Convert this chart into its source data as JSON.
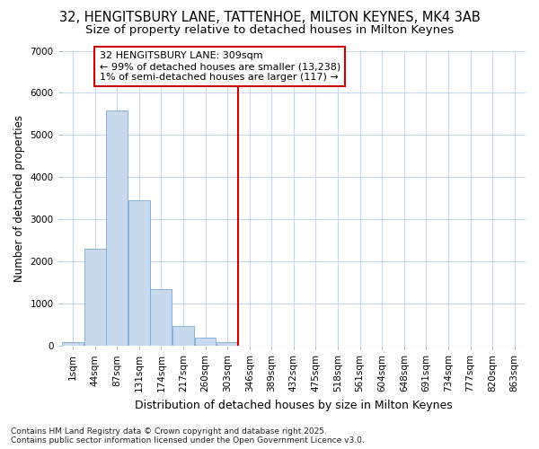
{
  "title": "32, HENGITSBURY LANE, TATTENHOE, MILTON KEYNES, MK4 3AB",
  "subtitle": "Size of property relative to detached houses in Milton Keynes",
  "xlabel": "Distribution of detached houses by size in Milton Keynes",
  "ylabel": "Number of detached properties",
  "bin_labels": [
    "1sqm",
    "44sqm",
    "87sqm",
    "131sqm",
    "174sqm",
    "217sqm",
    "260sqm",
    "303sqm",
    "346sqm",
    "389sqm",
    "432sqm",
    "475sqm",
    "518sqm",
    "561sqm",
    "604sqm",
    "648sqm",
    "691sqm",
    "734sqm",
    "777sqm",
    "820sqm",
    "863sqm"
  ],
  "bar_values": [
    80,
    2300,
    5580,
    3450,
    1340,
    470,
    200,
    90,
    0,
    0,
    0,
    0,
    0,
    0,
    0,
    0,
    0,
    0,
    0,
    0,
    0
  ],
  "bar_color": "#c8d8ed",
  "bar_edge_color": "#7aa8d4",
  "vline_x": 7.5,
  "vline_color": "#cc0000",
  "annotation_text": "32 HENGITSBURY LANE: 309sqm\n← 99% of detached houses are smaller (13,238)\n1% of semi-detached houses are larger (117) →",
  "annotation_box_color": "#cc0000",
  "ylim": [
    0,
    7000
  ],
  "yticks": [
    0,
    1000,
    2000,
    3000,
    4000,
    5000,
    6000,
    7000
  ],
  "background_color": "#ffffff",
  "grid_color": "#c8d8ed",
  "footnote": "Contains HM Land Registry data © Crown copyright and database right 2025.\nContains public sector information licensed under the Open Government Licence v3.0.",
  "title_fontsize": 10.5,
  "subtitle_fontsize": 9.5,
  "xlabel_fontsize": 9,
  "ylabel_fontsize": 8.5,
  "tick_fontsize": 7.5,
  "annotation_fontsize": 8,
  "footnote_fontsize": 6.5
}
